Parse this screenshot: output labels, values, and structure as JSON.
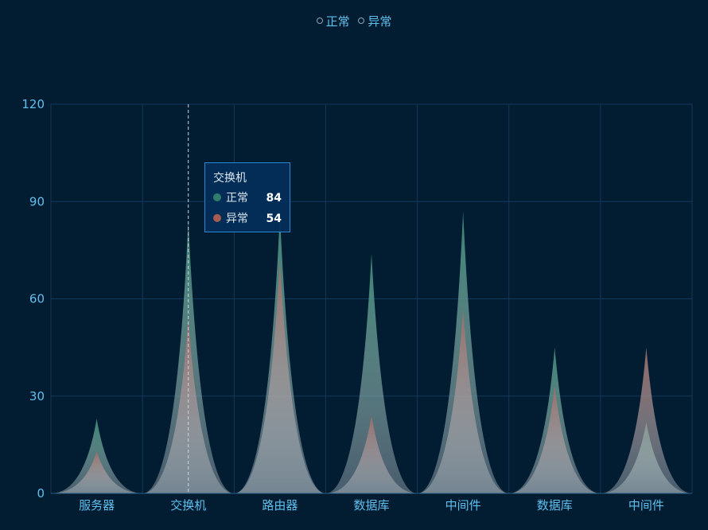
{
  "legend": {
    "items": [
      {
        "label": "正常",
        "color": "#3f7f73"
      },
      {
        "label": "异常",
        "color": "#8c5d5a"
      }
    ]
  },
  "tooltip": {
    "title": "交换机",
    "rows": [
      {
        "label": "正常",
        "value": "84",
        "color": "#2f7d6a"
      },
      {
        "label": "异常",
        "value": "54",
        "color": "#a75c52"
      }
    ]
  },
  "chart_data": {
    "type": "bar",
    "style": "pictorial-peak (overlapping)",
    "categories": [
      "服务器",
      "交换机",
      "路由器",
      "数据库",
      "中间件",
      "数据库",
      "中间件"
    ],
    "series": [
      {
        "name": "正常",
        "values": [
          23,
          84,
          86,
          74,
          87,
          45,
          22
        ],
        "color": "#3f8a78"
      },
      {
        "name": "异常",
        "values": [
          13,
          54,
          72,
          24,
          57,
          33,
          45
        ],
        "color": "#9a6a66"
      }
    ],
    "ylim": [
      0,
      120
    ],
    "yticks": [
      0,
      30,
      60,
      90,
      120
    ],
    "grid": true,
    "legend_position": "top-center",
    "highlight_category_index": 1,
    "colors": {
      "background": "#021c32",
      "grid": "#12385a",
      "axis_label": "#5fc0ee",
      "pointer": "#c9d6df"
    }
  }
}
